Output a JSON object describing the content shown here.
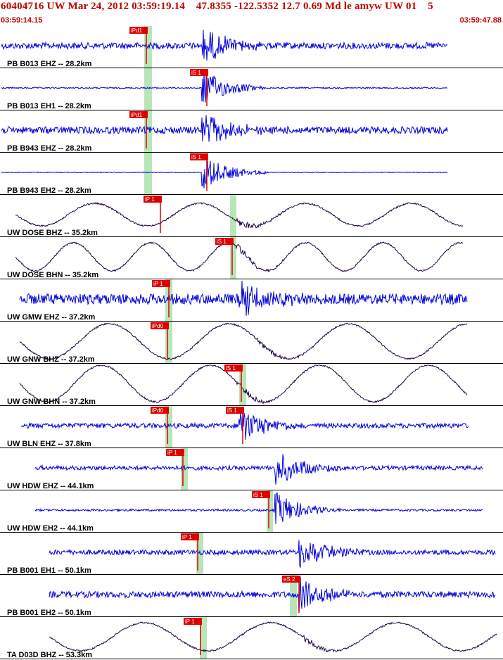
{
  "header": {
    "title": "60404716 UW Mar 24, 2012 03:59:19.14    47.8355 -122.5352 12.7 0.69 Md le amyw UW 01    5",
    "start_time": "03:59:14.15",
    "end_time": "03:59:47.88"
  },
  "colors": {
    "trace_blue": "#0000e0",
    "trace_dark": "#200040",
    "pick_red": "#e00000",
    "pick_window_green": "#b8e6b8",
    "divider": "#000000",
    "label_black": "#000000"
  },
  "traces": [
    {
      "label": "PB B013 EHZ -- 28.2km",
      "pick": "iPd1",
      "pick_kind": "P",
      "color": "blue",
      "amp": 9
    },
    {
      "label": "PB B013 EH1 -- 28.2km",
      "pick": "iS 1",
      "pick_kind": "S",
      "color": "blue",
      "amp": 2
    },
    {
      "label": "PB B943 EHZ -- 28.2km",
      "pick": "iPd1",
      "pick_kind": "P",
      "color": "blue",
      "amp": 10
    },
    {
      "label": "PB B943 EH2 -- 28.2km",
      "pick": "iS 1",
      "pick_kind": "S",
      "color": "blue",
      "amp": 1
    },
    {
      "label": "UW DOSE BHZ -- 35.2km",
      "pick": "iP 1",
      "pick_kind": "P",
      "color": "dark",
      "amp": 16
    },
    {
      "label": "UW DOSE BHN -- 35.2km",
      "pick": "iS 1",
      "pick_kind": "S",
      "color": "dark",
      "amp": 20
    },
    {
      "label": "UW GMW EHZ -- 37.2km",
      "pick": "iP 1",
      "pick_kind": "P",
      "color": "blue",
      "amp": 15
    },
    {
      "label": "UW GNW BHZ -- 37.2km",
      "pick": "iPd0",
      "pick_kind": "P",
      "color": "dark",
      "amp": 25
    },
    {
      "label": "UW GNW BHN -- 37.2km",
      "pick": "iS 1",
      "pick_kind": "S",
      "color": "dark",
      "amp": 26
    },
    {
      "label": "UW BLN EHZ -- 37.8km",
      "pick": "iPd0",
      "pick_kind": "P",
      "color": "blue",
      "amp": 7,
      "pick2": "iS 1"
    },
    {
      "label": "UW HDW EHZ -- 44.1km",
      "pick": "iP 1",
      "pick_kind": "P",
      "color": "blue",
      "amp": 6
    },
    {
      "label": "UW HDW EH2 -- 44.1km",
      "pick": "iS 1",
      "pick_kind": "S",
      "color": "blue",
      "amp": 3
    },
    {
      "label": "PB B001 EH1 -- 50.1km",
      "pick": "iP 1",
      "pick_kind": "P",
      "color": "blue",
      "amp": 7
    },
    {
      "label": "PB B001 EH2 -- 50.1km",
      "pick": "eS 2",
      "pick_kind": "S",
      "color": "blue",
      "amp": 9
    },
    {
      "label": "TA D03D BHZ -- 53.3km",
      "pick": "iP 1",
      "pick_kind": "P",
      "color": "dark",
      "amp": 20
    }
  ]
}
